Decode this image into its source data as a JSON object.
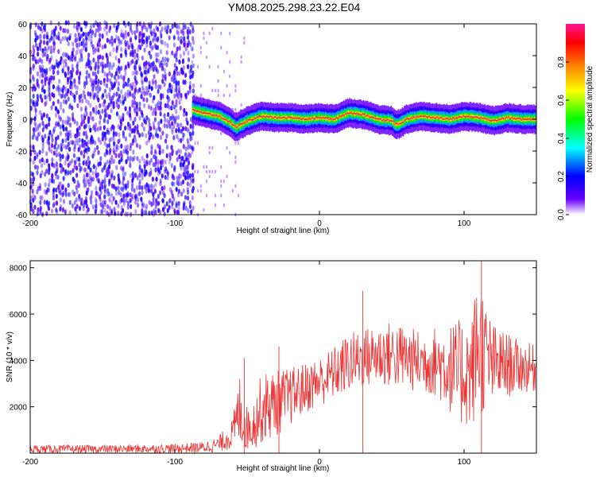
{
  "title": "YM08.2025.298.23.22.E04",
  "chart_data": [
    {
      "type": "heatmap",
      "xlabel": "Height of straight line (km)",
      "ylabel": "Frequency (Hz)",
      "xlim": [
        -200,
        150
      ],
      "ylim": [
        -60,
        60
      ],
      "x_ticks": [
        "-200",
        "-100",
        "0",
        "100"
      ],
      "y_ticks": [
        "60",
        "40",
        "20",
        "0",
        "-20",
        "-40",
        "-60"
      ],
      "colorbar": {
        "label": "Normalized spectral amplitude",
        "range": [
          0,
          1
        ],
        "ticks": [
          "0.0",
          "0.2",
          "0.4",
          "0.6",
          "0.8"
        ],
        "colors": [
          "#ffffff",
          "#6a00ff",
          "#0000ff",
          "#00ffff",
          "#00ff00",
          "#ffff00",
          "#ff8000",
          "#ff0000",
          "#ff1493"
        ]
      },
      "noise_region": {
        "x_range": [
          -200,
          -88
        ],
        "freq_range": [
          -60,
          60
        ],
        "amplitude": 0.15
      },
      "ridge": {
        "x": [
          -88,
          -80,
          -70,
          -62,
          -58,
          -50,
          -40,
          -30,
          -20,
          -10,
          0,
          10,
          20,
          30,
          40,
          50,
          52,
          55,
          60,
          70,
          80,
          90,
          100,
          110,
          120,
          130,
          140,
          150
        ],
        "freq": [
          6,
          4,
          2,
          -2,
          -5,
          -1,
          2,
          1,
          1,
          0,
          1,
          0,
          4,
          3,
          0,
          -1,
          -3,
          -3,
          0,
          2,
          1,
          0,
          2,
          1,
          -1,
          1,
          0,
          0
        ],
        "peak_amplitude": 0.95
      }
    },
    {
      "type": "line",
      "xlabel": "Height of straight line (km)",
      "ylabel": "SNR (10 * v/v)",
      "xlim": [
        -200,
        150
      ],
      "ylim": [
        0,
        8300
      ],
      "x_ticks": [
        "-200",
        "-100",
        "0",
        "100"
      ],
      "y_ticks": [
        "8000",
        "6000",
        "4000",
        "2000"
      ],
      "series_color": "#ee3333",
      "envelope": {
        "x": [
          -200,
          -150,
          -100,
          -80,
          -70,
          -60,
          -55,
          -50,
          -45,
          -40,
          -30,
          -20,
          -10,
          0,
          10,
          20,
          30,
          40,
          50,
          60,
          70,
          80,
          90,
          95,
          100,
          105,
          110,
          115,
          120,
          130,
          140,
          150
        ],
        "low": [
          0,
          0,
          0,
          0,
          50,
          150,
          300,
          100,
          200,
          400,
          700,
          1200,
          1700,
          2000,
          2300,
          2600,
          2800,
          2900,
          2800,
          2700,
          2600,
          2400,
          1800,
          900,
          1200,
          1000,
          1500,
          1800,
          2000,
          2400,
          2600,
          2600
        ],
        "high": [
          350,
          350,
          400,
          500,
          700,
          1500,
          3500,
          2000,
          2400,
          3500,
          3600,
          3700,
          3900,
          4200,
          4600,
          5200,
          5400,
          5600,
          5700,
          5500,
          5300,
          5500,
          5600,
          5700,
          5900,
          5800,
          8300,
          6500,
          5600,
          5200,
          4800,
          4700
        ]
      },
      "spikes": [
        {
          "x": -52,
          "y": 4100
        },
        {
          "x": -28,
          "y": 4600
        },
        {
          "x": 30,
          "y": 7000
        },
        {
          "x": 112,
          "y": 8300
        }
      ]
    }
  ]
}
